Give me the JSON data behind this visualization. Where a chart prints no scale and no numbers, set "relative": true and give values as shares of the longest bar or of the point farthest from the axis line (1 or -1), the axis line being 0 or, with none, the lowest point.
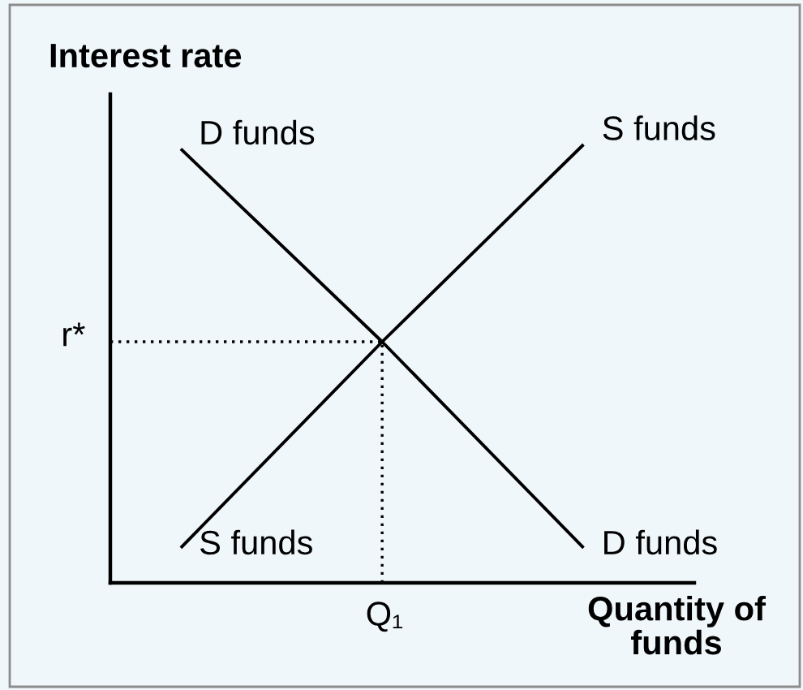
{
  "chart_data": {
    "type": "line",
    "ylabel": "Interest rate",
    "xlabel": "Quantity of funds",
    "relative": true,
    "categories": [
      null,
      null,
      null
    ],
    "series": [
      {
        "name": "D funds",
        "color": "#000000",
        "values": [
          0.99,
          0.55,
          0.08
        ]
      },
      {
        "name": "S funds",
        "color": "#000000",
        "values": [
          0.08,
          0.55,
          1
        ]
      }
    ],
    "ref_lines": [
      {
        "axis": "y",
        "value": 0.55,
        "label": "r*",
        "color": "#000000",
        "line_style": "dotted"
      }
    ],
    "annotations": [
      "Q₁"
    ],
    "marker": "none",
    "line_style": "solid",
    "legend": false
  }
}
